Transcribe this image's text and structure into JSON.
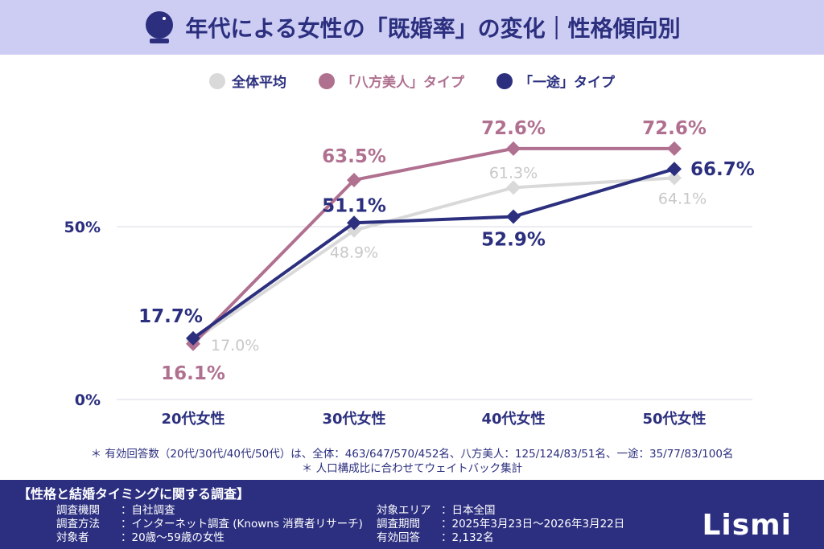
{
  "header": {
    "title": "年代による女性の「既婚率」の変化｜性格傾向別",
    "icon": "crystal-ball-icon"
  },
  "chart_data": {
    "type": "line",
    "title": "年代による女性の「既婚率」の変化｜性格傾向別",
    "categories": [
      "20代女性",
      "30代女性",
      "40代女性",
      "50代女性"
    ],
    "yticks": [
      "0%",
      "50%"
    ],
    "ylim": [
      0,
      100
    ],
    "grid": true,
    "legend_placement": "top",
    "series": [
      {
        "name": "全体平均",
        "color": "#d9d9d9",
        "values": [
          17.0,
          48.9,
          61.3,
          64.1
        ],
        "labels": [
          "17.0%",
          "48.9%",
          "61.3%",
          "64.1%"
        ]
      },
      {
        "name": "「八方美人」タイプ",
        "color": "#b07090",
        "values": [
          16.1,
          63.5,
          72.6,
          72.6
        ],
        "labels": [
          "16.1%",
          "63.5%",
          "72.6%",
          "72.6%"
        ]
      },
      {
        "name": "「一途」タイプ",
        "color": "#2b2f7e",
        "values": [
          17.7,
          51.1,
          52.9,
          66.7
        ],
        "labels": [
          "17.7%",
          "51.1%",
          "52.9%",
          "66.7%"
        ]
      }
    ]
  },
  "notes": [
    "＊ 有効回答数（20代/30代/40代/50代）は、全体：463/647/570/452名、八方美人：125/124/83/51名、一途：35/77/83/100名",
    "＊ 人口構成比に合わせてウェイトバック集計"
  ],
  "footer": {
    "title": "【性格と結婚タイミングに関する調査】",
    "left": [
      [
        "調査機関",
        "：自社調査"
      ],
      [
        "調査方法",
        "：インターネット調査 (Knowns 消費者リサーチ)"
      ],
      [
        "対象者",
        "：20歳～59歳の女性"
      ]
    ],
    "right": [
      [
        "対象エリア",
        "：日本全国"
      ],
      [
        "調査期間",
        "：2025年3月23日～2026年3月22日"
      ],
      [
        "有効回答",
        "：2,132名"
      ]
    ],
    "logo": "Lismi"
  }
}
